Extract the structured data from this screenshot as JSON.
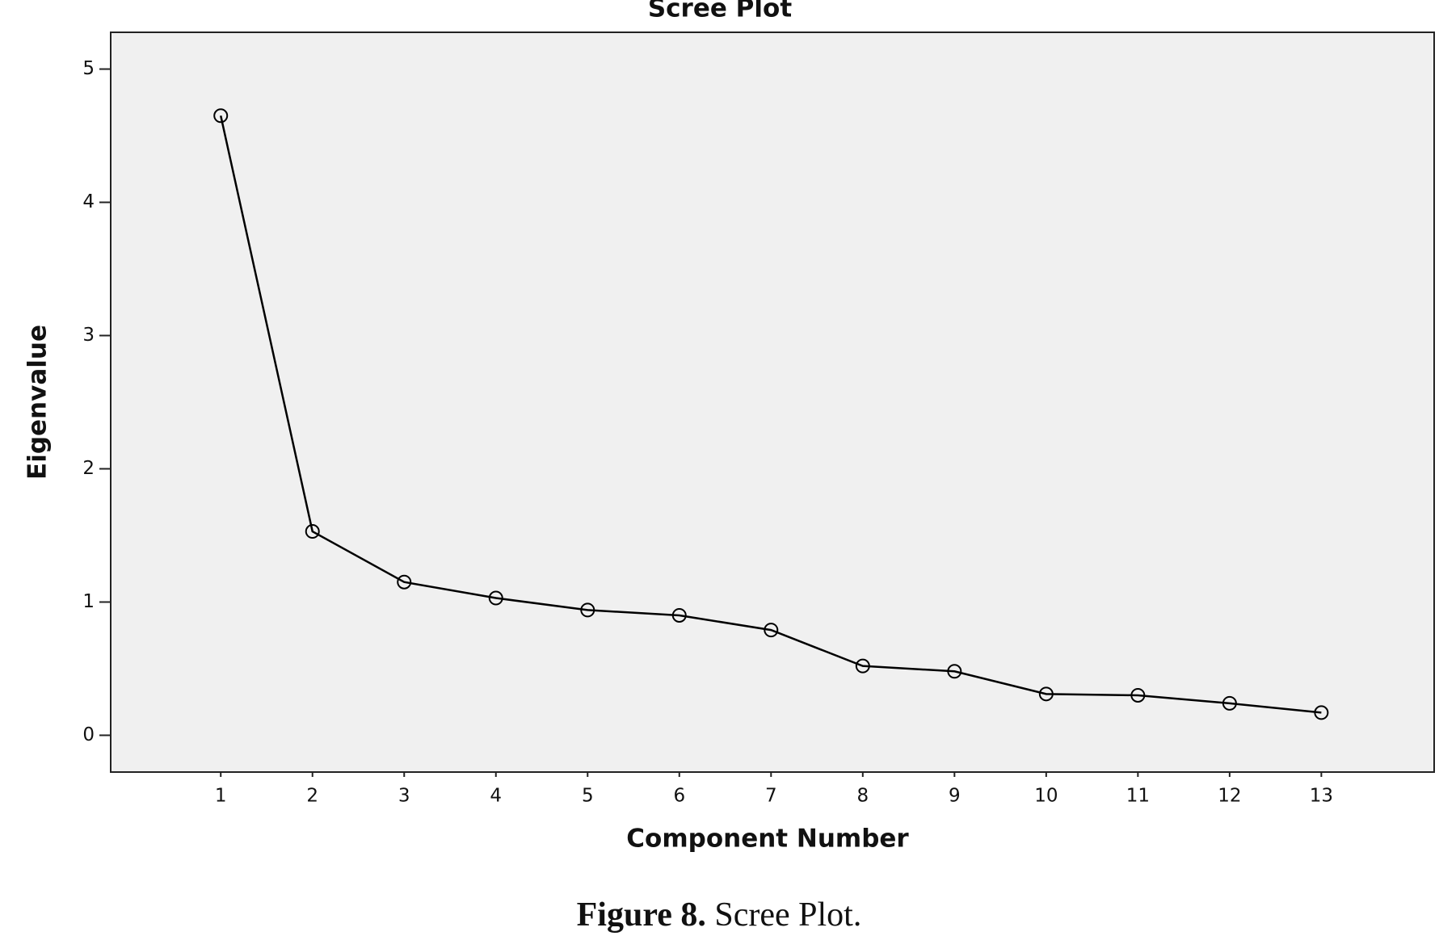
{
  "chart_data": {
    "type": "line",
    "title": "Scree Plot",
    "x_label": "Component Number",
    "y_label": "Eigenvalue",
    "x": [
      1,
      2,
      3,
      4,
      5,
      6,
      7,
      8,
      9,
      10,
      11,
      12,
      13
    ],
    "series": [
      {
        "name": "Eigenvalue",
        "color": "#000000",
        "values": [
          4.65,
          1.53,
          1.15,
          1.03,
          0.94,
          0.9,
          0.79,
          0.52,
          0.48,
          0.31,
          0.3,
          0.24,
          0.17
        ]
      }
    ],
    "xlim": [
      -0.2,
      14.23
    ],
    "ylim": [
      -0.276,
      5.276
    ],
    "xticks": [
      1,
      2,
      3,
      4,
      5,
      6,
      7,
      8,
      9,
      10,
      11,
      12,
      13
    ],
    "yticks": [
      0,
      1,
      2,
      3,
      4,
      5
    ],
    "grid": false,
    "background": "#f0f0f0"
  },
  "caption": {
    "label": "Figure 8.",
    "text": "Scree Plot."
  }
}
